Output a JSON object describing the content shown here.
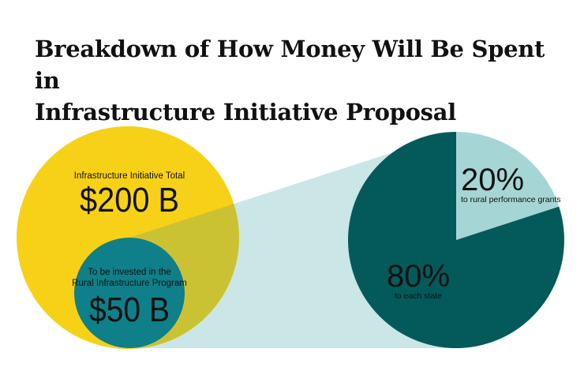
{
  "title_line1": "Breakdown of How Money Will Be Spent in",
  "title_line2": "Infrastructure Initiative Proposal",
  "chart_data": {
    "type": "pie",
    "title": "Breakdown of How Money Will Be Spent in Infrastructure Initiative Proposal",
    "total": {
      "label": "Infrastructure Initiative Total",
      "value_text": "$200 B",
      "value": 200,
      "unit": "billion USD"
    },
    "subset": {
      "label_line1": "To be invested in the",
      "label_line2": "Rural Infrastructure Program",
      "value_text": "$50 B",
      "value": 50,
      "unit": "billion USD"
    },
    "slices": [
      {
        "label": "to rural performance grants",
        "value": 20,
        "value_text": "20%",
        "color": "#a6d5d5"
      },
      {
        "label": "to each state",
        "value": 80,
        "value_text": "80%",
        "color": "#045a5a"
      }
    ],
    "colors": {
      "total_circle": "#f7d117",
      "subset_circle": "#0f7f8a",
      "overlap": "#cbc233",
      "connector": "#cbe6e6"
    }
  }
}
